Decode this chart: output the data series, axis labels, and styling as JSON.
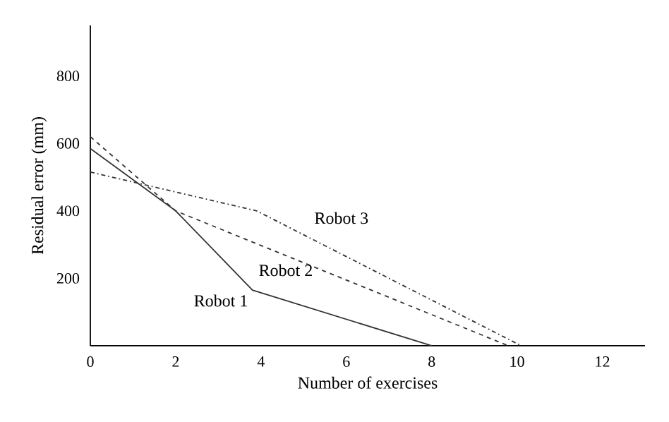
{
  "chart_data": {
    "type": "line",
    "xlabel": "Number of exercises",
    "ylabel": "Residual error (mm)",
    "xlim": [
      0,
      13
    ],
    "ylim": [
      0,
      950
    ],
    "xticks": [
      0,
      2,
      4,
      6,
      8,
      10,
      12
    ],
    "yticks": [
      200,
      400,
      600,
      800
    ],
    "series": [
      {
        "name": "Robot 1",
        "color": "#333333",
        "line_style": "solid",
        "x": [
          0,
          2,
          3.8,
          8
        ],
        "values": [
          585,
          400,
          165,
          0
        ]
      },
      {
        "name": "Robot 2",
        "color": "#333333",
        "line_style": "dashed",
        "x": [
          0,
          2,
          9.8,
          9.8
        ],
        "values": [
          620,
          400,
          0,
          0
        ]
      },
      {
        "name": "Robot 3",
        "color": "#333333",
        "line_style": "dashdot",
        "x": [
          0,
          3.9,
          10.1
        ],
        "values": [
          515,
          400,
          0
        ]
      }
    ]
  }
}
